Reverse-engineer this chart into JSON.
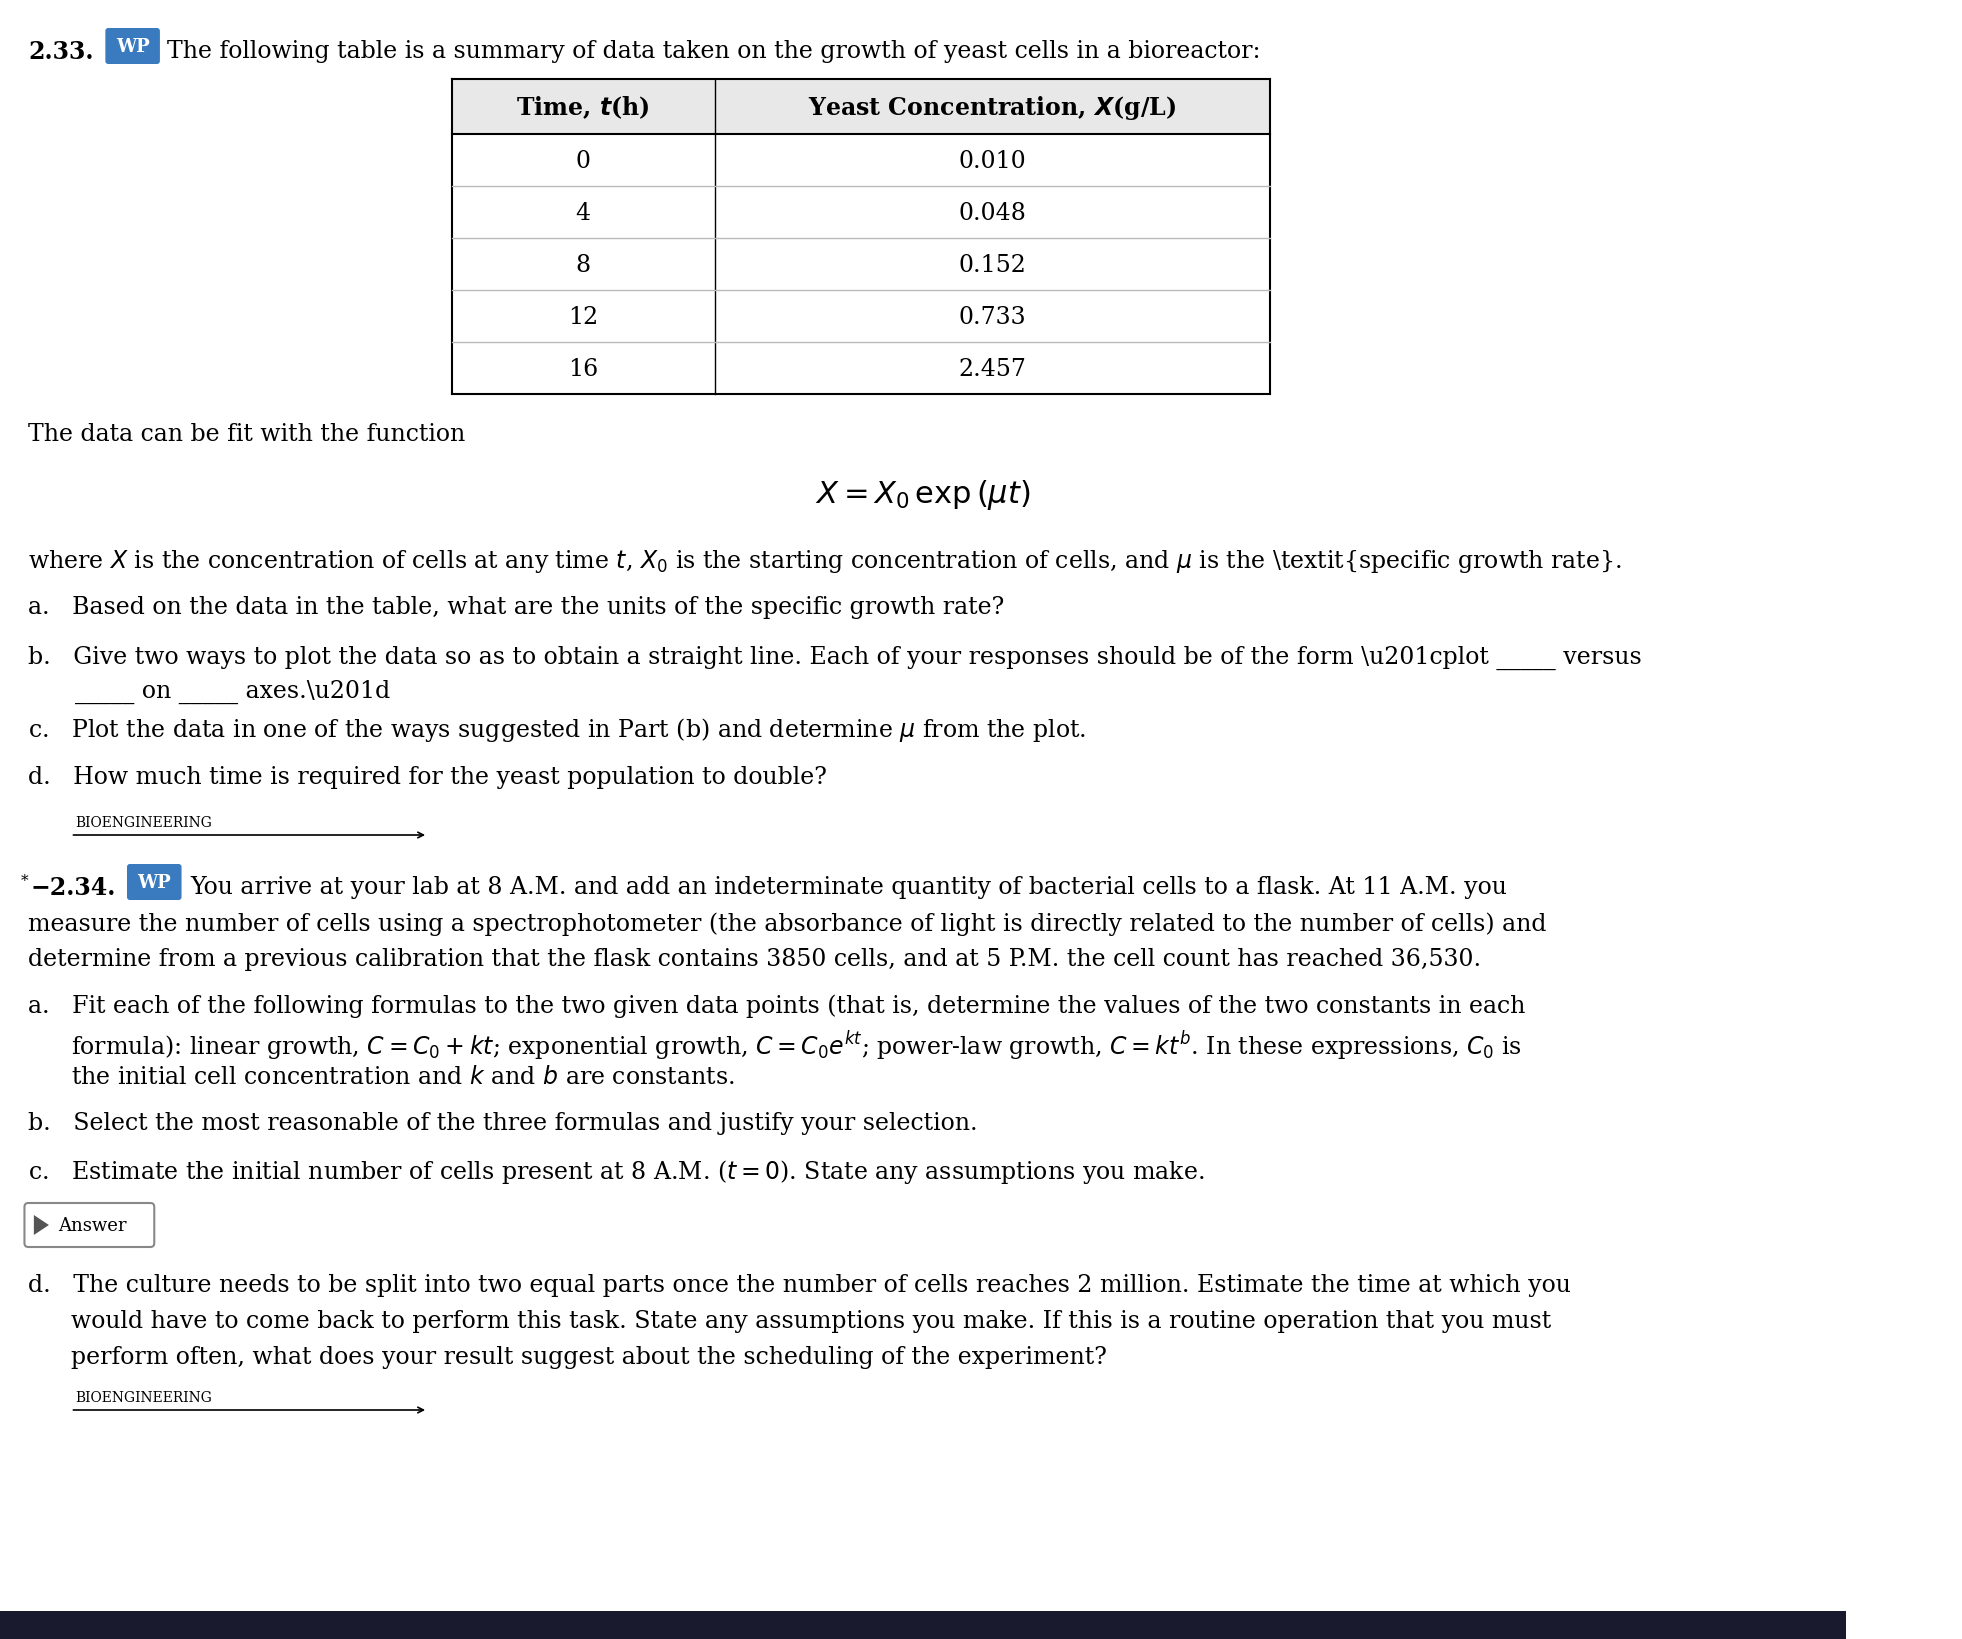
{
  "bg_color": "#ffffff",
  "problem_233": {
    "number": "2.33.",
    "wp_label": "WP",
    "intro": "The following table is a summary of data taken on the growth of yeast cells in a bioreactor:",
    "table_header": [
      "Time, t(h)",
      "Yeast Concentration, X(g/L)"
    ],
    "table_data": [
      [
        "0",
        "0.010"
      ],
      [
        "4",
        "0.048"
      ],
      [
        "8",
        "0.152"
      ],
      [
        "12",
        "0.733"
      ],
      [
        "16",
        "2.457"
      ]
    ],
    "bioengineering_label": "BIOENGINEERING"
  },
  "problem_234": {
    "number": "2.34.",
    "wp_label": "WP",
    "answer_label": "Answer",
    "bioengineering_label": "BIOENGINEERING"
  }
}
